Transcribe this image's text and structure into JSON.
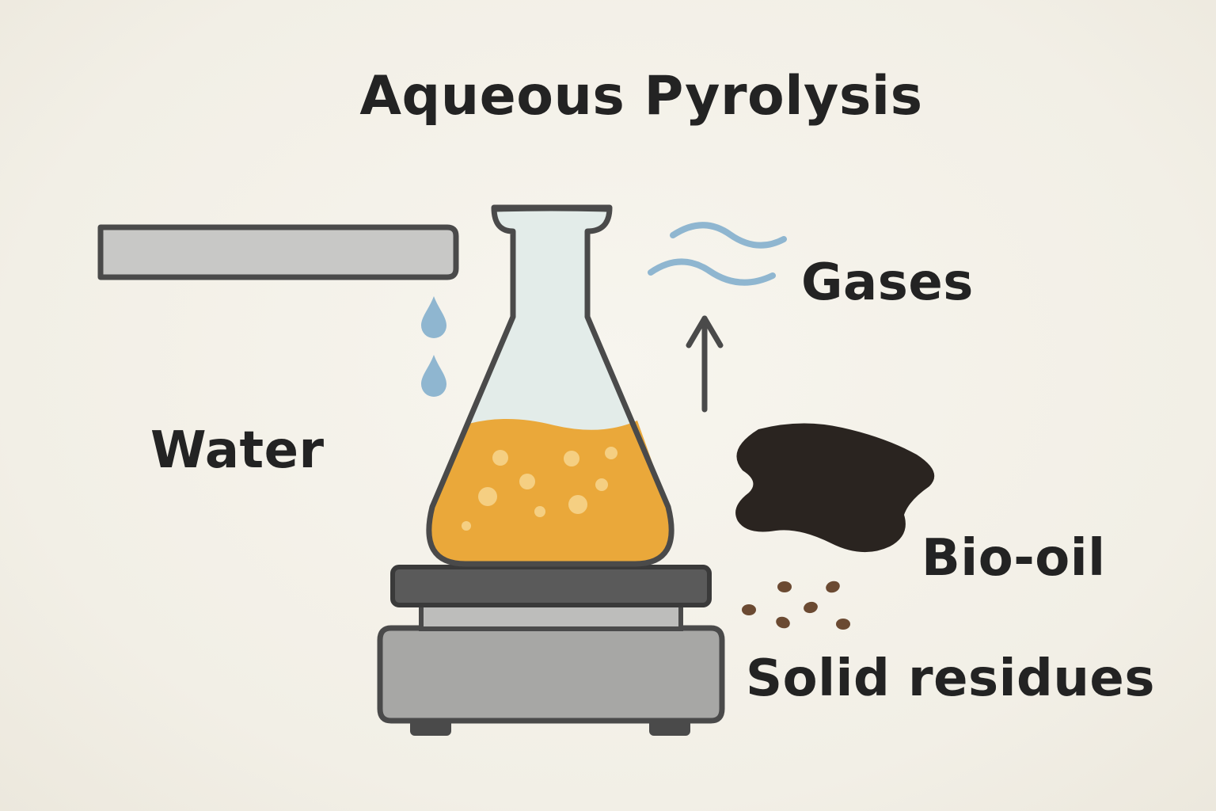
{
  "diagram": {
    "title": "Aqueous Pyrolysis",
    "labels": {
      "water": "Water",
      "gases": "Gases",
      "bio_oil": "Bio-oil",
      "solid_residues": "Solid residues"
    },
    "icons": [
      "water-pipe-icon",
      "water-drop-icon",
      "erlenmeyer-flask-icon",
      "hot-plate-icon",
      "gas-wave-icon",
      "up-arrow-icon",
      "bio-oil-blob-icon",
      "solid-particle-icon"
    ],
    "colors": {
      "background": "#f4f1e9",
      "text": "#232323",
      "outline": "#4a4a4a",
      "water": "#8fb6d0",
      "liquid": "#eaa83a",
      "bubbles": "#f5cf82",
      "flask_glass": "#e3ece9",
      "bio_oil": "#2a2420",
      "residue": "#6b4a32",
      "heater_body": "#a7a7a5",
      "heater_top": "#5a5a5a"
    }
  }
}
